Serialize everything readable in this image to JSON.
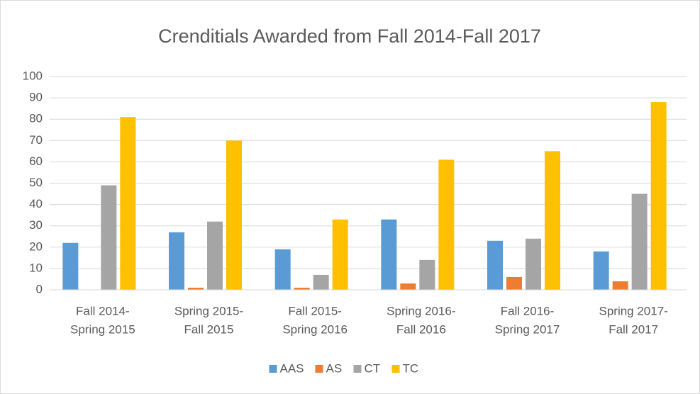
{
  "chart_data": {
    "type": "bar",
    "title": "Crenditials Awarded from Fall 2014-Fall 2017",
    "categories": [
      [
        "Fall 2014-",
        "Spring 2015"
      ],
      [
        "Spring 2015-",
        "Fall 2015"
      ],
      [
        "Fall 2015-",
        "Spring 2016"
      ],
      [
        "Spring 2016-",
        "Fall 2016"
      ],
      [
        "Fall 2016-",
        "Spring 2017"
      ],
      [
        "Spring 2017-",
        "Fall 2017"
      ]
    ],
    "series": [
      {
        "name": "AAS",
        "color": "#5b9bd5",
        "values": [
          22,
          27,
          19,
          33,
          23,
          18
        ]
      },
      {
        "name": "AS",
        "color": "#ed7d31",
        "values": [
          0,
          1,
          1,
          3,
          6,
          4
        ]
      },
      {
        "name": "CT",
        "color": "#a5a5a5",
        "values": [
          49,
          32,
          7,
          14,
          24,
          45
        ]
      },
      {
        "name": "TC",
        "color": "#ffc000",
        "values": [
          81,
          70,
          33,
          61,
          65,
          88
        ]
      }
    ],
    "ylim": [
      0,
      100
    ],
    "yticks": [
      0,
      10,
      20,
      30,
      40,
      50,
      60,
      70,
      80,
      90,
      100
    ],
    "grid": true,
    "legend": "bottom"
  }
}
